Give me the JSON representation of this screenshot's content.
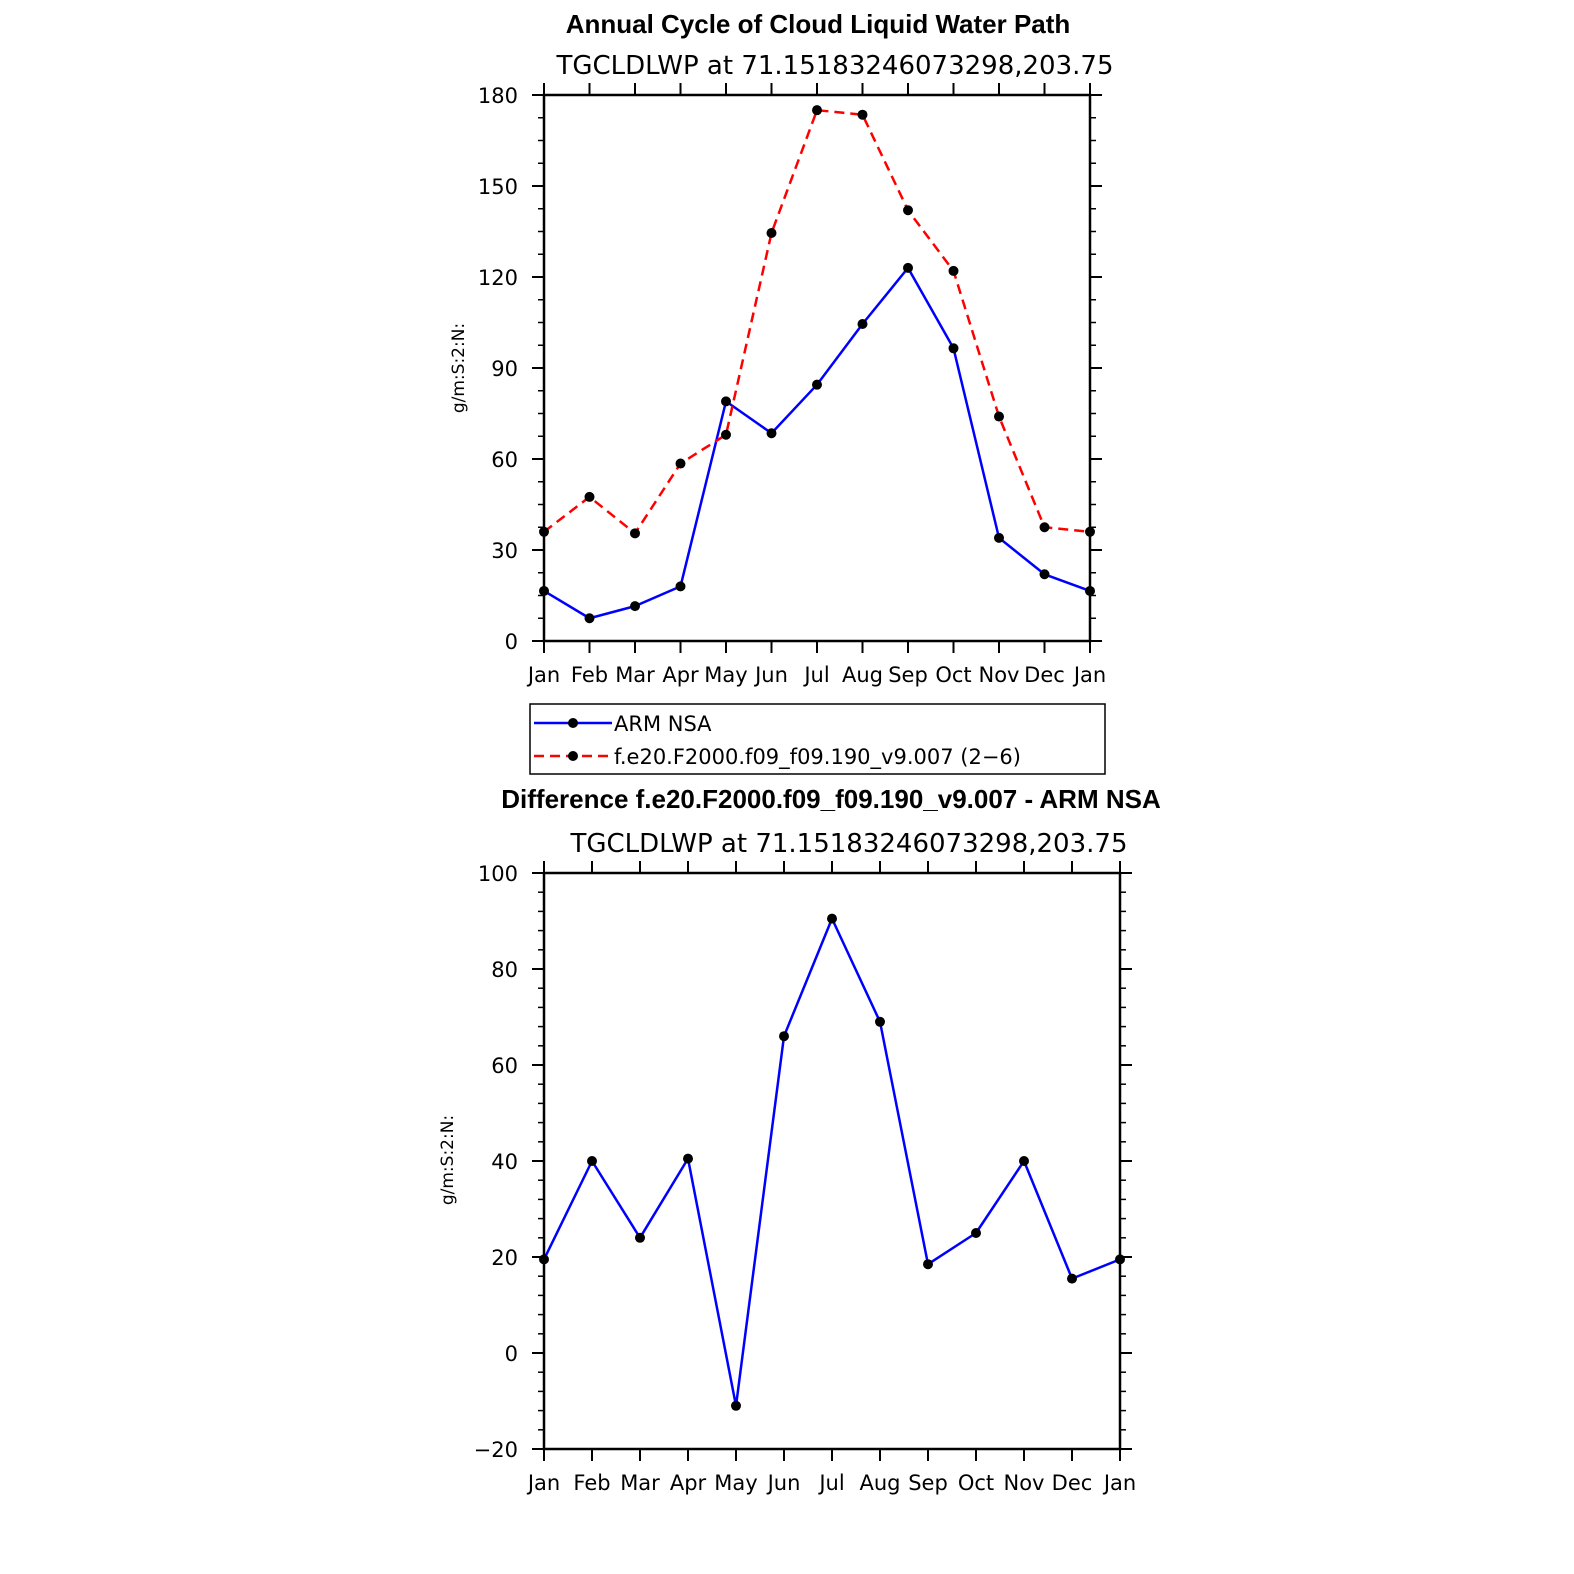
{
  "chart_data": [
    {
      "type": "line",
      "title": "Annual Cycle of Cloud Liquid Water Path",
      "subtitle": "TGCLDLWP  at  71.15183246073298,203.75",
      "xlabel": "",
      "ylabel": "g/m:S:2:N:",
      "categories": [
        "Jan",
        "Feb",
        "Mar",
        "Apr",
        "May",
        "Jun",
        "Jul",
        "Aug",
        "Sep",
        "Oct",
        "Nov",
        "Dec",
        "Jan"
      ],
      "ylim": [
        0,
        180
      ],
      "yticks": [
        0,
        30,
        60,
        90,
        120,
        150,
        180
      ],
      "ytick_labels": [
        "0",
        "30",
        "60",
        "90",
        "120",
        "150",
        "180"
      ],
      "series": [
        {
          "name": "ARM NSA",
          "color": "#0000ff",
          "dash": "solid",
          "values": [
            16.5,
            7.5,
            11.5,
            18,
            79,
            68.5,
            84.5,
            104.5,
            123,
            96.5,
            34,
            22,
            16.5
          ]
        },
        {
          "name": "f.e20.F2000.f09_f09.190_v9.007 (2−6)",
          "color": "#ff0000",
          "dash": "dashed",
          "values": [
            36,
            47.5,
            35.5,
            58.5,
            68,
            134.5,
            175,
            173.5,
            142,
            122,
            74,
            37.5,
            36
          ]
        }
      ],
      "legend": {
        "entries": [
          "ARM NSA",
          "f.e20.F2000.f09_f09.190_v9.007 (2−6)"
        ],
        "position": "bottom"
      }
    },
    {
      "type": "line",
      "title": "Difference f.e20.F2000.f09_f09.190_v9.007 - ARM NSA",
      "subtitle": "TGCLDLWP  at  71.15183246073298,203.75",
      "xlabel": "",
      "ylabel": "g/m:S:2:N:",
      "categories": [
        "Jan",
        "Feb",
        "Mar",
        "Apr",
        "May",
        "Jun",
        "Jul",
        "Aug",
        "Sep",
        "Oct",
        "Nov",
        "Dec",
        "Jan"
      ],
      "ylim": [
        -20,
        100
      ],
      "yticks": [
        -20,
        0,
        20,
        40,
        60,
        80,
        100
      ],
      "ytick_labels": [
        "−20",
        "0",
        "20",
        "40",
        "60",
        "80",
        "100"
      ],
      "series": [
        {
          "name": "Difference",
          "color": "#0000ff",
          "dash": "solid",
          "values": [
            19.5,
            40,
            24,
            40.5,
            -11,
            66,
            90.5,
            69,
            18.5,
            25,
            40,
            15.5,
            19.5
          ]
        }
      ]
    }
  ]
}
